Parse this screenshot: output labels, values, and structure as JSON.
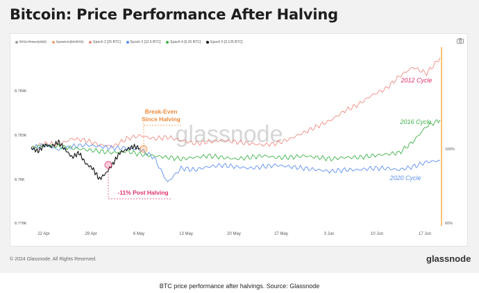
{
  "header": {
    "title": "Bitcoin: Price Performance After Halving"
  },
  "legend": [
    {
      "label": "BTC: Price [USD]",
      "color": "#9e9e9e",
      "enabled": false
    },
    {
      "label": "Epoch 1 [50 BTC]",
      "color": "#f0a070",
      "enabled": false
    },
    {
      "label": "Epoch 2 [25 BTC]",
      "color": "#f08a80",
      "enabled": true
    },
    {
      "label": "Epoch 3 [12.5 BTC]",
      "color": "#5b8ff0",
      "enabled": true
    },
    {
      "label": "Epoch 4 [6.25 BTC]",
      "color": "#3fb24a",
      "enabled": true
    },
    {
      "label": "Epoch 5 [3.125 BTC]",
      "color": "#111111",
      "enabled": true
    }
  ],
  "chart_data": {
    "type": "line",
    "title": "Bitcoin: Price Performance After Halving",
    "x_ticks": [
      "22 Apr",
      "29 Apr",
      "6 May",
      "13 May",
      "20 May",
      "27 May",
      "3 Jun",
      "10 Jun",
      "17 Jun"
    ],
    "left_ticks": [
      "8.784K",
      "8.783K",
      "8.78K",
      "8.778K"
    ],
    "right_ticks": [
      "100%",
      "60%"
    ],
    "series": [
      {
        "name": "2012 Cycle",
        "color": "#f08a80",
        "x": [
          0,
          2,
          4,
          6,
          8,
          10,
          12,
          14,
          16,
          18,
          20,
          22,
          24,
          26,
          28,
          30,
          32,
          34,
          36,
          38,
          40,
          42,
          44,
          46,
          48,
          50,
          52,
          54,
          56,
          58,
          60
        ],
        "y": [
          100,
          101.5,
          101,
          103,
          102.5,
          101,
          100.5,
          103,
          104,
          103,
          103.5,
          102.5,
          101.5,
          102,
          102.5,
          102,
          101.5,
          101,
          101.5,
          103,
          105,
          107,
          109,
          112,
          114,
          117,
          119,
          123,
          126,
          124,
          129
        ]
      },
      {
        "name": "2016 Cycle",
        "color": "#5b8ff0",
        "x": [
          0,
          2,
          4,
          6,
          8,
          10,
          12,
          14,
          16,
          18,
          20,
          22,
          24,
          26,
          28,
          30,
          32,
          34,
          36,
          38,
          40,
          42,
          44,
          46,
          48,
          50,
          52,
          54,
          56,
          58,
          60
        ],
        "y": [
          100,
          101,
          99.5,
          100.5,
          101,
          100.5,
          100,
          100,
          99.5,
          97,
          89,
          93.5,
          93,
          94,
          94.5,
          94,
          93.5,
          94,
          94.5,
          94,
          93.5,
          93,
          92.5,
          93,
          93,
          93.5,
          93.5,
          93,
          94,
          95.5,
          96
        ]
      },
      {
        "name": "2020 Cycle",
        "color": "#3fb24a",
        "x": [
          0,
          2,
          4,
          6,
          8,
          10,
          12,
          14,
          16,
          18,
          20,
          22,
          24,
          26,
          28,
          30,
          32,
          34,
          36,
          38,
          40,
          42,
          44,
          46,
          48,
          50,
          52,
          54,
          56,
          58,
          60
        ],
        "y": [
          100,
          101,
          100.5,
          100,
          99.5,
          99,
          98.5,
          99,
          98,
          97.5,
          97,
          96.5,
          97,
          97.5,
          97,
          96.5,
          97,
          97.5,
          97,
          97,
          97.5,
          97,
          96.5,
          97,
          97,
          97.5,
          98,
          98.5,
          102,
          107,
          109
        ]
      },
      {
        "name": "",
        "color": "#111111",
        "x": [
          0,
          1,
          2,
          3,
          4,
          5,
          6,
          7,
          8,
          9,
          10,
          11,
          12,
          13,
          14,
          15,
          16
        ],
        "y": [
          100,
          99,
          101,
          100.5,
          102,
          99.5,
          97,
          98.5,
          95,
          93.5,
          90,
          92,
          95,
          98.5,
          99.5,
          100.5,
          100
        ]
      }
    ],
    "annotations": [
      {
        "text": "Break-Even",
        "color": "#f08a3a"
      },
      {
        "text": "Since Halving",
        "color": "#f08a3a"
      },
      {
        "text": "-11% Post Halving",
        "color": "#e0306a"
      }
    ],
    "grid": false,
    "legend_position": "top-left"
  },
  "footer": {
    "copyright": "© 2024 Glassnode. All Rights Reserved.",
    "brand": "glassnode",
    "watermark": "glassnode"
  },
  "caption": "BTC price performance after halvings. Source: Glassnode"
}
